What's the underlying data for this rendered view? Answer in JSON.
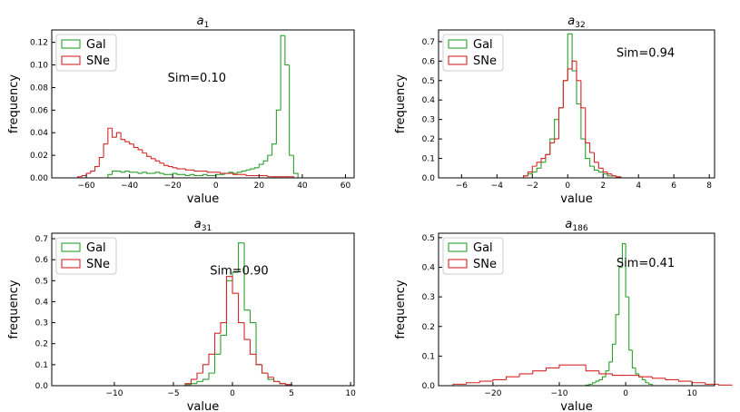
{
  "chart_data": [
    {
      "type": "histogram",
      "title": {
        "symbol": "a",
        "subscript": "1"
      },
      "xlabel": "value",
      "ylabel": "frequency",
      "annotation": "Sim=0.10",
      "legend": "upper left",
      "xlim": [
        -76,
        64
      ],
      "ylim": [
        0,
        0.131
      ],
      "xticks": [
        {
          "value": -60,
          "label": "−60"
        },
        {
          "value": -40,
          "label": "−40"
        },
        {
          "value": -20,
          "label": "−20"
        },
        0,
        20,
        40,
        60
      ],
      "yticks": [
        {
          "value": 0,
          "label": "0.00"
        },
        {
          "value": 0.02,
          "label": "0.02"
        },
        {
          "value": 0.04,
          "label": "0.04"
        },
        {
          "value": 0.06,
          "label": "0.06"
        },
        {
          "value": 0.08,
          "label": "0.08"
        },
        {
          "value": 0.1,
          "label": "0.10"
        },
        {
          "value": 0.12,
          "label": "0.12"
        }
      ],
      "series": [
        {
          "name": "Gal",
          "color": "#2ca02c",
          "bins": [
            -50,
            -48,
            -46,
            -44,
            -42,
            -40,
            -38,
            -36,
            -34,
            -32,
            -30,
            -28,
            -26,
            -24,
            -22,
            -20,
            -18,
            -16,
            -14,
            -12,
            -10,
            -8,
            -6,
            -4,
            -2,
            0,
            2,
            4,
            6,
            8,
            10,
            12,
            14,
            16,
            18,
            20,
            22,
            24,
            26,
            28,
            30,
            32,
            34,
            36,
            38
          ],
          "values": [
            0.003,
            0.006,
            0.006,
            0.005,
            0.006,
            0.005,
            0.005,
            0.004,
            0.005,
            0.004,
            0.004,
            0.005,
            0.004,
            0.003,
            0.003,
            0.004,
            0.003,
            0.003,
            0.002,
            0.003,
            0.002,
            0.002,
            0.003,
            0.002,
            0.002,
            0.003,
            0.003,
            0.004,
            0.005,
            0.004,
            0.005,
            0.006,
            0.007,
            0.008,
            0.009,
            0.012,
            0.015,
            0.02,
            0.03,
            0.06,
            0.126,
            0.1,
            0.02,
            0.004
          ]
        },
        {
          "name": "SNe",
          "color": "#d62728",
          "bins": [
            -64,
            -62,
            -60,
            -58,
            -56,
            -54,
            -52,
            -50,
            -48,
            -46,
            -44,
            -42,
            -40,
            -38,
            -36,
            -34,
            -32,
            -30,
            -28,
            -26,
            -24,
            -22,
            -20,
            -18,
            -16,
            -14,
            -12,
            -10,
            -8,
            -6,
            -4,
            -2,
            0,
            2,
            4,
            6,
            8,
            10,
            12,
            14,
            16,
            18,
            20,
            22,
            24,
            26,
            28,
            30,
            32,
            34,
            36
          ],
          "values": [
            0.001,
            0.002,
            0.004,
            0.006,
            0.01,
            0.018,
            0.03,
            0.044,
            0.036,
            0.04,
            0.034,
            0.032,
            0.03,
            0.027,
            0.025,
            0.022,
            0.019,
            0.017,
            0.015,
            0.013,
            0.011,
            0.01,
            0.009,
            0.008,
            0.008,
            0.007,
            0.007,
            0.006,
            0.006,
            0.006,
            0.005,
            0.005,
            0.005,
            0.004,
            0.004,
            0.004,
            0.003,
            0.003,
            0.003,
            0.002,
            0.002,
            0.002,
            0.002,
            0.002,
            0.001,
            0.001,
            0.001,
            0.001,
            0.001,
            0.001
          ]
        }
      ]
    },
    {
      "type": "histogram",
      "title": {
        "symbol": "a",
        "subscript": "32"
      },
      "xlabel": "value",
      "ylabel": "frequency",
      "annotation": "Sim=0.94",
      "legend": "upper left",
      "xlim": [
        -7.3,
        8.3
      ],
      "ylim": [
        0,
        0.76
      ],
      "xticks": [
        {
          "value": -6,
          "label": "−6"
        },
        {
          "value": -4,
          "label": "−4"
        },
        {
          "value": -2,
          "label": "−2"
        },
        0,
        2,
        4,
        6,
        8
      ],
      "yticks": [
        {
          "value": 0,
          "label": "0.0"
        },
        0.1,
        0.2,
        0.3,
        0.4,
        0.5,
        0.6,
        0.7
      ],
      "series": [
        {
          "name": "Gal",
          "color": "#2ca02c",
          "bins": [
            -2.5,
            -2.25,
            -2,
            -1.75,
            -1.5,
            -1.25,
            -1,
            -0.75,
            -0.5,
            -0.25,
            0,
            0.25,
            0.5,
            0.75,
            1,
            1.25,
            1.5,
            1.75,
            2,
            2.25,
            2.5,
            2.75,
            3
          ],
          "values": [
            0.01,
            0.02,
            0.03,
            0.05,
            0.08,
            0.12,
            0.2,
            0.3,
            0.36,
            0.5,
            0.74,
            0.55,
            0.38,
            0.2,
            0.1,
            0.06,
            0.04,
            0.03,
            0.02,
            0.01,
            0.01,
            0.005
          ]
        },
        {
          "name": "SNe",
          "color": "#d62728",
          "bins": [
            -2.5,
            -2.25,
            -2,
            -1.75,
            -1.5,
            -1.25,
            -1,
            -0.75,
            -0.5,
            -0.25,
            0,
            0.25,
            0.5,
            0.75,
            1,
            1.25,
            1.5,
            1.75,
            2,
            2.25,
            2.5,
            2.75,
            3
          ],
          "values": [
            0.01,
            0.03,
            0.06,
            0.08,
            0.1,
            0.12,
            0.18,
            0.2,
            0.36,
            0.5,
            0.56,
            0.6,
            0.5,
            0.36,
            0.18,
            0.13,
            0.08,
            0.05,
            0.03,
            0.02,
            0.01,
            0.005
          ]
        }
      ]
    },
    {
      "type": "histogram",
      "title": {
        "symbol": "a",
        "subscript": "31"
      },
      "xlabel": "value",
      "ylabel": "frequency",
      "annotation": "Sim=0.90",
      "legend": "upper left",
      "xlim": [
        -15.3,
        10.3
      ],
      "ylim": [
        0,
        0.726
      ],
      "xticks": [
        {
          "value": -10,
          "label": "−10"
        },
        {
          "value": -5,
          "label": "−5"
        },
        0,
        5,
        10
      ],
      "yticks": [
        {
          "value": 0,
          "label": "0.0"
        },
        0.1,
        0.2,
        0.3,
        0.4,
        0.5,
        0.6,
        0.7
      ],
      "series": [
        {
          "name": "Gal",
          "color": "#2ca02c",
          "bins": [
            -4,
            -3.5,
            -3,
            -2.5,
            -2,
            -1.5,
            -1,
            -0.5,
            0,
            0.5,
            1,
            1.5,
            2,
            2.5,
            3,
            3.5,
            4,
            4.5,
            5
          ],
          "values": [
            0.005,
            0.01,
            0.02,
            0.03,
            0.06,
            0.15,
            0.24,
            0.5,
            0.54,
            0.68,
            0.36,
            0.3,
            0.1,
            0.06,
            0.03,
            0.02,
            0.01,
            0.005
          ]
        },
        {
          "name": "SNe",
          "color": "#d62728",
          "bins": [
            -4,
            -3.5,
            -3,
            -2.5,
            -2,
            -1.5,
            -1,
            -0.5,
            0,
            0.5,
            1,
            1.5,
            2,
            2.5,
            3,
            3.5,
            4,
            4.5,
            5
          ],
          "values": [
            0.01,
            0.03,
            0.06,
            0.1,
            0.15,
            0.25,
            0.3,
            0.52,
            0.44,
            0.3,
            0.22,
            0.15,
            0.1,
            0.06,
            0.04,
            0.02,
            0.01,
            0.005
          ]
        }
      ]
    },
    {
      "type": "histogram",
      "title": {
        "symbol": "a",
        "subscript": "186"
      },
      "xlabel": "value",
      "ylabel": "frequency",
      "annotation": "Sim=0.41",
      "legend": "upper left",
      "xlim": [
        -28.2,
        13.4
      ],
      "ylim": [
        0,
        0.515
      ],
      "xticks": [
        {
          "value": -20,
          "label": "−20"
        },
        {
          "value": -10,
          "label": "−10"
        },
        0,
        10
      ],
      "yticks": [
        {
          "value": 0,
          "label": "0.0"
        },
        0.1,
        0.2,
        0.3,
        0.4,
        0.5
      ],
      "series": [
        {
          "name": "Gal",
          "color": "#2ca02c",
          "bins": [
            -6,
            -5.5,
            -5,
            -4.5,
            -4,
            -3.5,
            -3,
            -2.5,
            -2,
            -1.5,
            -1,
            -0.5,
            0,
            0.5,
            1,
            1.5,
            2,
            2.5,
            3,
            3.5,
            4
          ],
          "values": [
            0.002,
            0.005,
            0.01,
            0.015,
            0.02,
            0.03,
            0.05,
            0.08,
            0.14,
            0.24,
            0.4,
            0.48,
            0.3,
            0.12,
            0.06,
            0.04,
            0.03,
            0.02,
            0.01,
            0.005
          ]
        },
        {
          "name": "SNe",
          "color": "#d62728",
          "bins": [
            -26,
            -24,
            -22,
            -20,
            -18,
            -16,
            -14,
            -12,
            -10,
            -8,
            -6,
            -4,
            -2,
            0,
            2,
            4,
            6,
            8,
            10,
            12,
            14,
            16
          ],
          "values": [
            0.005,
            0.01,
            0.015,
            0.02,
            0.03,
            0.04,
            0.05,
            0.06,
            0.07,
            0.07,
            0.05,
            0.04,
            0.035,
            0.035,
            0.03,
            0.025,
            0.02,
            0.015,
            0.01,
            0.005,
            0.002
          ]
        }
      ]
    }
  ]
}
